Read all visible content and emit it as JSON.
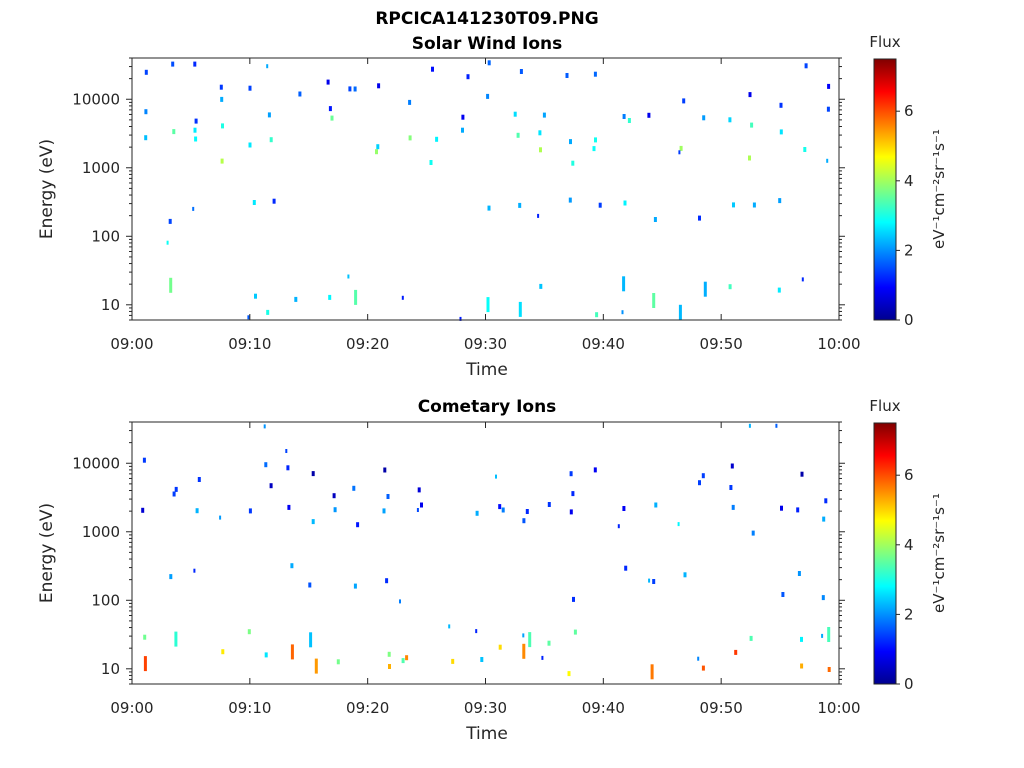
{
  "figure_title": "RPCICA141230T09.PNG",
  "colormap": [
    "#00008f",
    "#0000ff",
    "#0080ff",
    "#00ffff",
    "#80ff80",
    "#ffff00",
    "#ff8000",
    "#ff0000",
    "#800000"
  ],
  "chart_data": [
    {
      "type": "heatmap",
      "title": "Solar Wind Ions",
      "xlabel": "Time",
      "ylabel": "Energy (eV)",
      "x_ticks": [
        "09:00",
        "09:10",
        "09:20",
        "09:30",
        "09:40",
        "09:50",
        "10:00"
      ],
      "xlim_minutes": [
        0,
        60
      ],
      "y_scale": "log",
      "y_ticks": [
        "10",
        "100",
        "1000",
        "10000"
      ],
      "ylim": [
        6,
        40000
      ],
      "colorbar": {
        "label": "Flux",
        "units": "eV⁻¹cm⁻²sr⁻¹s⁻¹",
        "range": [
          0,
          7.5
        ],
        "ticks": [
          "0",
          "2",
          "4",
          "6"
        ]
      },
      "band_values": [
        {
          "energy": 1700,
          "flux": 3.5
        },
        {
          "energy": 3500,
          "flux": 2.8
        },
        {
          "energy": 8000,
          "flux": 1.5
        },
        {
          "energy": 20000,
          "flux": 1.2
        },
        {
          "energy": 12,
          "flux": 3.0
        },
        {
          "energy": 200,
          "flux": 2.0
        }
      ]
    },
    {
      "type": "heatmap",
      "title": "Cometary Ions",
      "xlabel": "Time",
      "ylabel": "Energy (eV)",
      "x_ticks": [
        "09:00",
        "09:10",
        "09:20",
        "09:30",
        "09:40",
        "09:50",
        "10:00"
      ],
      "xlim_minutes": [
        0,
        60
      ],
      "y_scale": "log",
      "y_ticks": [
        "10",
        "100",
        "1000",
        "10000"
      ],
      "ylim": [
        6,
        40000
      ],
      "colorbar": {
        "label": "Flux",
        "units": "eV⁻¹cm⁻²sr⁻¹s⁻¹",
        "range": [
          0,
          7.5
        ],
        "ticks": [
          "0",
          "2",
          "4",
          "6"
        ]
      },
      "band_values": [
        {
          "energy": 12,
          "flux": 5.5
        },
        {
          "energy": 22,
          "flux": 3.0
        },
        {
          "energy": 1700,
          "flux": 1.5
        },
        {
          "energy": 3500,
          "flux": 1.2
        },
        {
          "energy": 7000,
          "flux": 1.0
        },
        {
          "energy": 180,
          "flux": 2.0
        }
      ]
    }
  ]
}
